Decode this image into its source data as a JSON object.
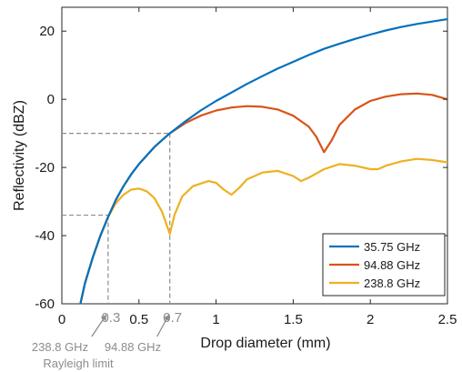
{
  "chart_data": {
    "type": "line",
    "xlabel": "Drop diameter (mm)",
    "ylabel": "Reflectivity (dBZ)",
    "xlim": [
      0,
      2.5
    ],
    "ylim": [
      -60,
      27
    ],
    "x_ticks": [
      "0",
      "0.5",
      "1",
      "1.5",
      "2",
      "2.5"
    ],
    "y_ticks": [
      "-60",
      "-40",
      "-20",
      "0",
      "20"
    ],
    "grid": false,
    "legend_position": "bottom-right",
    "series": [
      {
        "name": "35.75 GHz",
        "color": "#0072BD",
        "points": [
          [
            0.12,
            -60
          ],
          [
            0.15,
            -54
          ],
          [
            0.2,
            -46.5
          ],
          [
            0.25,
            -40
          ],
          [
            0.3,
            -34.5
          ],
          [
            0.35,
            -29.5
          ],
          [
            0.4,
            -25.5
          ],
          [
            0.45,
            -22
          ],
          [
            0.5,
            -19
          ],
          [
            0.55,
            -16.5
          ],
          [
            0.6,
            -14
          ],
          [
            0.65,
            -12
          ],
          [
            0.7,
            -10
          ],
          [
            0.8,
            -6.5
          ],
          [
            0.9,
            -3.3
          ],
          [
            1.0,
            -0.5
          ],
          [
            1.1,
            2
          ],
          [
            1.2,
            4.5
          ],
          [
            1.3,
            6.8
          ],
          [
            1.4,
            9
          ],
          [
            1.5,
            11
          ],
          [
            1.6,
            13
          ],
          [
            1.7,
            14.8
          ],
          [
            1.8,
            16.3
          ],
          [
            1.9,
            17.7
          ],
          [
            2.0,
            19
          ],
          [
            2.1,
            20.2
          ],
          [
            2.2,
            21.2
          ],
          [
            2.3,
            22.1
          ],
          [
            2.4,
            22.8
          ],
          [
            2.5,
            23.5
          ]
        ]
      },
      {
        "name": "94.88 GHz",
        "color": "#D95319",
        "points": [
          [
            0.12,
            -60
          ],
          [
            0.15,
            -54
          ],
          [
            0.2,
            -46.5
          ],
          [
            0.25,
            -40
          ],
          [
            0.3,
            -34.5
          ],
          [
            0.35,
            -29.5
          ],
          [
            0.4,
            -25.5
          ],
          [
            0.45,
            -22
          ],
          [
            0.5,
            -19
          ],
          [
            0.55,
            -16.5
          ],
          [
            0.6,
            -14
          ],
          [
            0.65,
            -12
          ],
          [
            0.7,
            -10
          ],
          [
            0.8,
            -7
          ],
          [
            0.9,
            -4.8
          ],
          [
            1.0,
            -3.3
          ],
          [
            1.1,
            -2.4
          ],
          [
            1.2,
            -2
          ],
          [
            1.3,
            -2.2
          ],
          [
            1.4,
            -3
          ],
          [
            1.5,
            -4.8
          ],
          [
            1.6,
            -8
          ],
          [
            1.65,
            -11
          ],
          [
            1.7,
            -15.5
          ],
          [
            1.75,
            -12
          ],
          [
            1.8,
            -7.5
          ],
          [
            1.9,
            -3
          ],
          [
            2.0,
            -0.5
          ],
          [
            2.1,
            0.8
          ],
          [
            2.2,
            1.5
          ],
          [
            2.3,
            1.7
          ],
          [
            2.4,
            1.3
          ],
          [
            2.5,
            0
          ]
        ]
      },
      {
        "name": "238.8 GHz",
        "color": "#EDB120",
        "points": [
          [
            0.12,
            -60
          ],
          [
            0.15,
            -54
          ],
          [
            0.2,
            -46.5
          ],
          [
            0.25,
            -40
          ],
          [
            0.3,
            -34.5
          ],
          [
            0.35,
            -30.5
          ],
          [
            0.4,
            -28
          ],
          [
            0.45,
            -26.5
          ],
          [
            0.5,
            -26.2
          ],
          [
            0.55,
            -27
          ],
          [
            0.6,
            -29
          ],
          [
            0.65,
            -33
          ],
          [
            0.7,
            -39.5
          ],
          [
            0.73,
            -34
          ],
          [
            0.78,
            -28.5
          ],
          [
            0.85,
            -25.5
          ],
          [
            0.95,
            -24
          ],
          [
            1.0,
            -24.5
          ],
          [
            1.05,
            -26.5
          ],
          [
            1.1,
            -28
          ],
          [
            1.15,
            -26
          ],
          [
            1.2,
            -23.5
          ],
          [
            1.3,
            -21.5
          ],
          [
            1.4,
            -21
          ],
          [
            1.5,
            -22.5
          ],
          [
            1.55,
            -24
          ],
          [
            1.6,
            -23
          ],
          [
            1.7,
            -20.5
          ],
          [
            1.8,
            -19
          ],
          [
            1.9,
            -19.5
          ],
          [
            2.0,
            -20.5
          ],
          [
            2.05,
            -20.5
          ],
          [
            2.1,
            -19.5
          ],
          [
            2.2,
            -18.2
          ],
          [
            2.3,
            -17.5
          ],
          [
            2.4,
            -17.8
          ],
          [
            2.5,
            -18.5
          ]
        ]
      }
    ],
    "reference_lines": [
      {
        "x": 0.3,
        "y": -34
      },
      {
        "x": 0.7,
        "y": -10
      }
    ],
    "annotations": {
      "x_values": [
        "0.3",
        "0.7"
      ],
      "band_labels": [
        "238.8 GHz",
        "94.88 GHz"
      ],
      "caption": "Rayleigh limit"
    }
  }
}
